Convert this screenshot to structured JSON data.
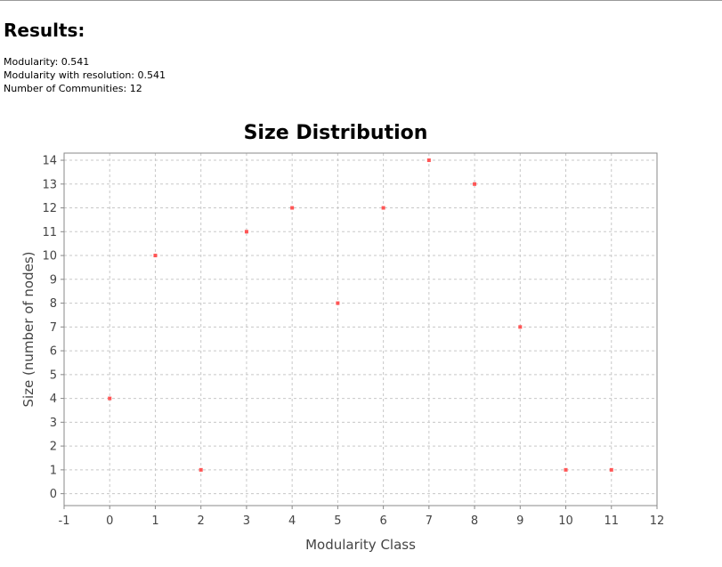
{
  "results": {
    "heading": "Results:",
    "modularity": "Modularity: 0.541",
    "modularity_resolution": "Modularity with resolution: 0.541",
    "communities": "Number of Communities: 12"
  },
  "colors": {
    "point": "#ff5555",
    "grid": "#c8c8c8",
    "axis": "#888888"
  },
  "chart_data": {
    "type": "scatter",
    "title": "Size Distribution",
    "xlabel": "Modularity Class",
    "ylabel": "Size (number of nodes)",
    "xlim": [
      -1,
      12
    ],
    "ylim": [
      -0.5,
      14.3
    ],
    "xticks": [
      -1,
      0,
      1,
      2,
      3,
      4,
      5,
      6,
      7,
      8,
      9,
      10,
      11,
      12
    ],
    "yticks": [
      0,
      1,
      2,
      3,
      4,
      5,
      6,
      7,
      8,
      9,
      10,
      11,
      12,
      13,
      14
    ],
    "grid": true,
    "legend": "none",
    "x": [
      0,
      1,
      2,
      3,
      4,
      5,
      6,
      7,
      8,
      9,
      10,
      11
    ],
    "y": [
      4,
      10,
      1,
      11,
      12,
      8,
      12,
      14,
      13,
      7,
      1,
      1
    ]
  }
}
